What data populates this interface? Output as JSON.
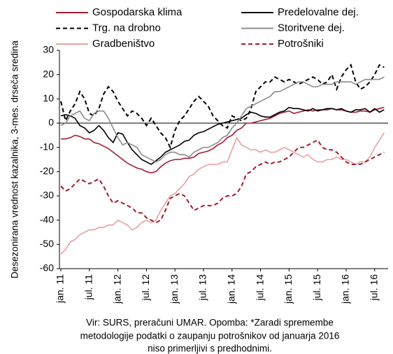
{
  "chart_data": {
    "type": "line",
    "y_label": "Desezonirana vrednost kazalnika, 3-mes. drseča sredina",
    "note": [
      "Vir: SURS, preračuni UMAR. Opomba: *Zaradi spremembe",
      "metodologije podatki o zaupanju potrošnikov od januarja 2016",
      "niso primerljivi s predhodnimi."
    ],
    "categories": [
      "jan. 11",
      null,
      null,
      null,
      null,
      null,
      "jul. 11",
      null,
      null,
      null,
      null,
      null,
      "jan. 12",
      null,
      null,
      null,
      null,
      null,
      "jul. 12",
      null,
      null,
      null,
      null,
      null,
      "jan. 13",
      null,
      null,
      null,
      null,
      null,
      "jul. 13",
      null,
      null,
      null,
      null,
      null,
      "jan. 14",
      null,
      null,
      null,
      null,
      null,
      "jul. 14",
      null,
      null,
      null,
      null,
      null,
      "jan. 15",
      null,
      null,
      null,
      null,
      null,
      "jul. 15",
      null,
      null,
      null,
      null,
      null,
      "jan. 16",
      null,
      null,
      null,
      null,
      null,
      "jul. 16",
      null,
      null
    ],
    "ylim": [
      -60,
      30
    ],
    "yticks": [
      -60,
      -50,
      -40,
      -30,
      -20,
      -10,
      0,
      10,
      20,
      30
    ],
    "series": [
      {
        "name": "Gospodarska klima",
        "color": "#a51c30",
        "dashed": false,
        "values": [
          -6.5,
          -6.5,
          -6,
          -5,
          -5.5,
          -6.5,
          -6.5,
          -8,
          -8.5,
          -9.5,
          -10.5,
          -12,
          -13.5,
          -15,
          -16.5,
          -17.5,
          -18.5,
          -19,
          -20,
          -20.5,
          -20,
          -18,
          -16.5,
          -15.5,
          -15,
          -15,
          -14.5,
          -14.5,
          -14,
          -12.5,
          -12,
          -11.5,
          -10.5,
          -9,
          -8,
          -6,
          -5,
          -3,
          -2,
          0,
          0,
          0.5,
          1,
          1.5,
          2,
          3,
          4,
          4.5,
          5,
          4,
          4.5,
          5,
          5.5,
          5,
          5.5,
          5.5,
          5.5,
          6,
          5.5,
          5.5,
          5,
          4.5,
          4.5,
          5,
          5,
          4.5,
          5.5,
          6,
          6.5
        ]
      },
      {
        "name": "Predelovalne dej.",
        "color": "#000000",
        "dashed": false,
        "values": [
          3,
          3.5,
          3,
          2,
          -1,
          -2,
          -4,
          -3,
          -1,
          -3,
          -6,
          -8,
          -4,
          -4.5,
          -8,
          -11,
          -13,
          -15,
          -16,
          -17,
          -15.5,
          -14,
          -12,
          -11,
          -10,
          -9,
          -7.5,
          -7,
          -5,
          -4,
          -3.5,
          -2.5,
          -1.5,
          -0.5,
          0,
          0.5,
          1,
          1.5,
          2,
          3.5,
          4.5,
          4,
          3,
          2.5,
          2.5,
          3.5,
          4.5,
          5,
          6.5,
          6,
          6,
          5.5,
          5,
          6,
          5,
          5.5,
          6,
          6,
          5.5,
          6,
          5,
          4.5,
          5.5,
          5.5,
          6,
          4.5,
          6,
          4.5,
          5.5
        ]
      },
      {
        "name": "Trg. na drobno",
        "color": "#000000",
        "dashed": true,
        "values": [
          9,
          1,
          5,
          8,
          13,
          10,
          4,
          3,
          6,
          12,
          15,
          13,
          9,
          6,
          3,
          5,
          4,
          2,
          -1,
          2,
          -1,
          -4,
          -6,
          -10,
          -3,
          1,
          3,
          6,
          9,
          11,
          9,
          7,
          3,
          1,
          -1,
          -2,
          3,
          2,
          1,
          2,
          6,
          13,
          15,
          17,
          17,
          19,
          18,
          17,
          18,
          17,
          16,
          17,
          18,
          19,
          18,
          16,
          17,
          20,
          14,
          19,
          22,
          24,
          17,
          14,
          15,
          17,
          20,
          24,
          23
        ]
      },
      {
        "name": "Storitvene dej.",
        "color": "#8c8c8c",
        "dashed": false,
        "values": [
          -1,
          0,
          3,
          4,
          5,
          2,
          1,
          4,
          5,
          5,
          2,
          -2,
          -6,
          -9,
          -8,
          -9,
          -10,
          -13,
          -14,
          -15,
          -16,
          -15,
          -13,
          -12,
          -12,
          -13,
          -13,
          -14,
          -12,
          -11,
          -10,
          -10,
          -9,
          -8,
          -6,
          -5,
          -2,
          0,
          3,
          6,
          7,
          8,
          9,
          10,
          11,
          13,
          13,
          14,
          15,
          16,
          17,
          17,
          16,
          15,
          15,
          16,
          16,
          16,
          17,
          17,
          17,
          17,
          16,
          17,
          18,
          18,
          18,
          18,
          19
        ]
      },
      {
        "name": "Gradbeništvo",
        "color": "#e8a0a0",
        "dashed": false,
        "values": [
          -54,
          -52,
          -49,
          -48,
          -46,
          -45,
          -44,
          -44,
          -43,
          -43,
          -42,
          -42,
          -40,
          -41,
          -42,
          -44,
          -43,
          -41,
          -40,
          -41,
          -40,
          -36,
          -33,
          -30,
          -29,
          -27,
          -25,
          -22,
          -21,
          -19,
          -18,
          -17,
          -17,
          -17,
          -16,
          -16,
          -11,
          -6,
          -9,
          -10,
          -11,
          -11,
          -12,
          -11,
          -12,
          -12,
          -11,
          -10,
          -11,
          -12,
          -13,
          -14,
          -13,
          -15,
          -16,
          -16,
          -15,
          -15,
          -14,
          -15,
          -15,
          -16,
          -17,
          -16,
          -16,
          -14,
          -10,
          -7,
          -4
        ]
      },
      {
        "name": "Potrošniki",
        "color": "#a51c30",
        "dashed": true,
        "values": [
          -26,
          -28,
          -27,
          -25,
          -23,
          -24,
          -25,
          -24,
          -23,
          -26,
          -30,
          -33,
          -32,
          -33,
          -34,
          -35,
          -37,
          -37,
          -39,
          -40,
          -41,
          -40,
          -36,
          -31,
          -30,
          -29,
          -30,
          -33,
          -36,
          -35,
          -34,
          -34,
          -34,
          -33,
          -31,
          -30,
          -30,
          -29,
          -26,
          -21,
          -20,
          -18,
          -17,
          -16,
          -17,
          -16,
          -16,
          -15,
          -14,
          -12,
          -10,
          -10,
          -9,
          -8,
          -7,
          -10,
          -11,
          -11,
          -12,
          -14,
          -16,
          -17,
          -17,
          -17,
          -16,
          -15,
          -14,
          -13,
          -12
        ]
      }
    ]
  }
}
